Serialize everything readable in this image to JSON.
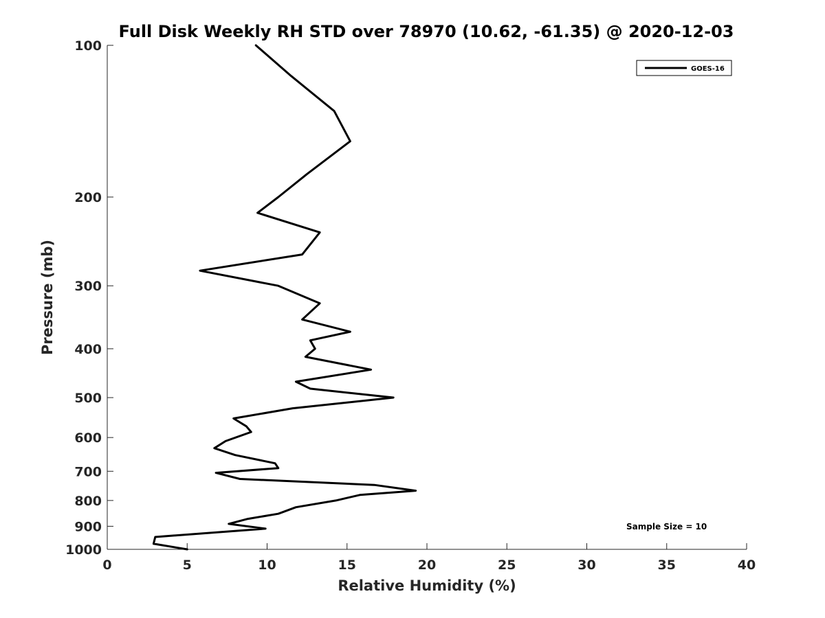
{
  "chart_data": {
    "type": "line",
    "title": "Full Disk Weekly RH STD over 78970 (10.62, -61.35) @ 2020-12-03",
    "xlabel": "Relative Humidity (%)",
    "ylabel": "Pressure (mb)",
    "xlim": [
      0,
      40
    ],
    "ylim": [
      100,
      1000
    ],
    "y_scale": "log",
    "y_reversed": true,
    "grid": false,
    "legend_position": "top-right",
    "x_ticks": [
      "0",
      "5",
      "10",
      "15",
      "20",
      "25",
      "30",
      "35",
      "40"
    ],
    "y_ticks": [
      "100",
      "200",
      "300",
      "400",
      "500",
      "600",
      "700",
      "800",
      "900",
      "1000"
    ],
    "series": [
      {
        "name": "GOES-16",
        "color": "#000000",
        "points": [
          [
            9.3,
            100
          ],
          [
            11.5,
            115
          ],
          [
            14.2,
            135
          ],
          [
            15.2,
            155
          ],
          [
            12.5,
            180
          ],
          [
            10.7,
            200
          ],
          [
            9.4,
            215
          ],
          [
            13.3,
            235
          ],
          [
            12.2,
            260
          ],
          [
            5.8,
            280
          ],
          [
            10.7,
            300
          ],
          [
            13.3,
            325
          ],
          [
            12.2,
            350
          ],
          [
            15.2,
            370
          ],
          [
            12.7,
            385
          ],
          [
            13.0,
            400
          ],
          [
            12.4,
            415
          ],
          [
            16.5,
            440
          ],
          [
            11.8,
            465
          ],
          [
            12.7,
            480
          ],
          [
            17.9,
            500
          ],
          [
            11.6,
            525
          ],
          [
            7.9,
            550
          ],
          [
            8.7,
            570
          ],
          [
            9.0,
            585
          ],
          [
            7.4,
            610
          ],
          [
            6.7,
            630
          ],
          [
            8.0,
            650
          ],
          [
            10.5,
            675
          ],
          [
            10.7,
            690
          ],
          [
            6.8,
            705
          ],
          [
            8.3,
            725
          ],
          [
            16.7,
            745
          ],
          [
            19.3,
            765
          ],
          [
            15.8,
            780
          ],
          [
            14.3,
            800
          ],
          [
            11.8,
            825
          ],
          [
            10.7,
            850
          ],
          [
            8.8,
            870
          ],
          [
            7.6,
            890
          ],
          [
            9.9,
            910
          ],
          [
            3.0,
            945
          ],
          [
            2.9,
            975
          ],
          [
            5.0,
            1000
          ]
        ]
      }
    ],
    "annotation": "Sample Size = 10"
  }
}
